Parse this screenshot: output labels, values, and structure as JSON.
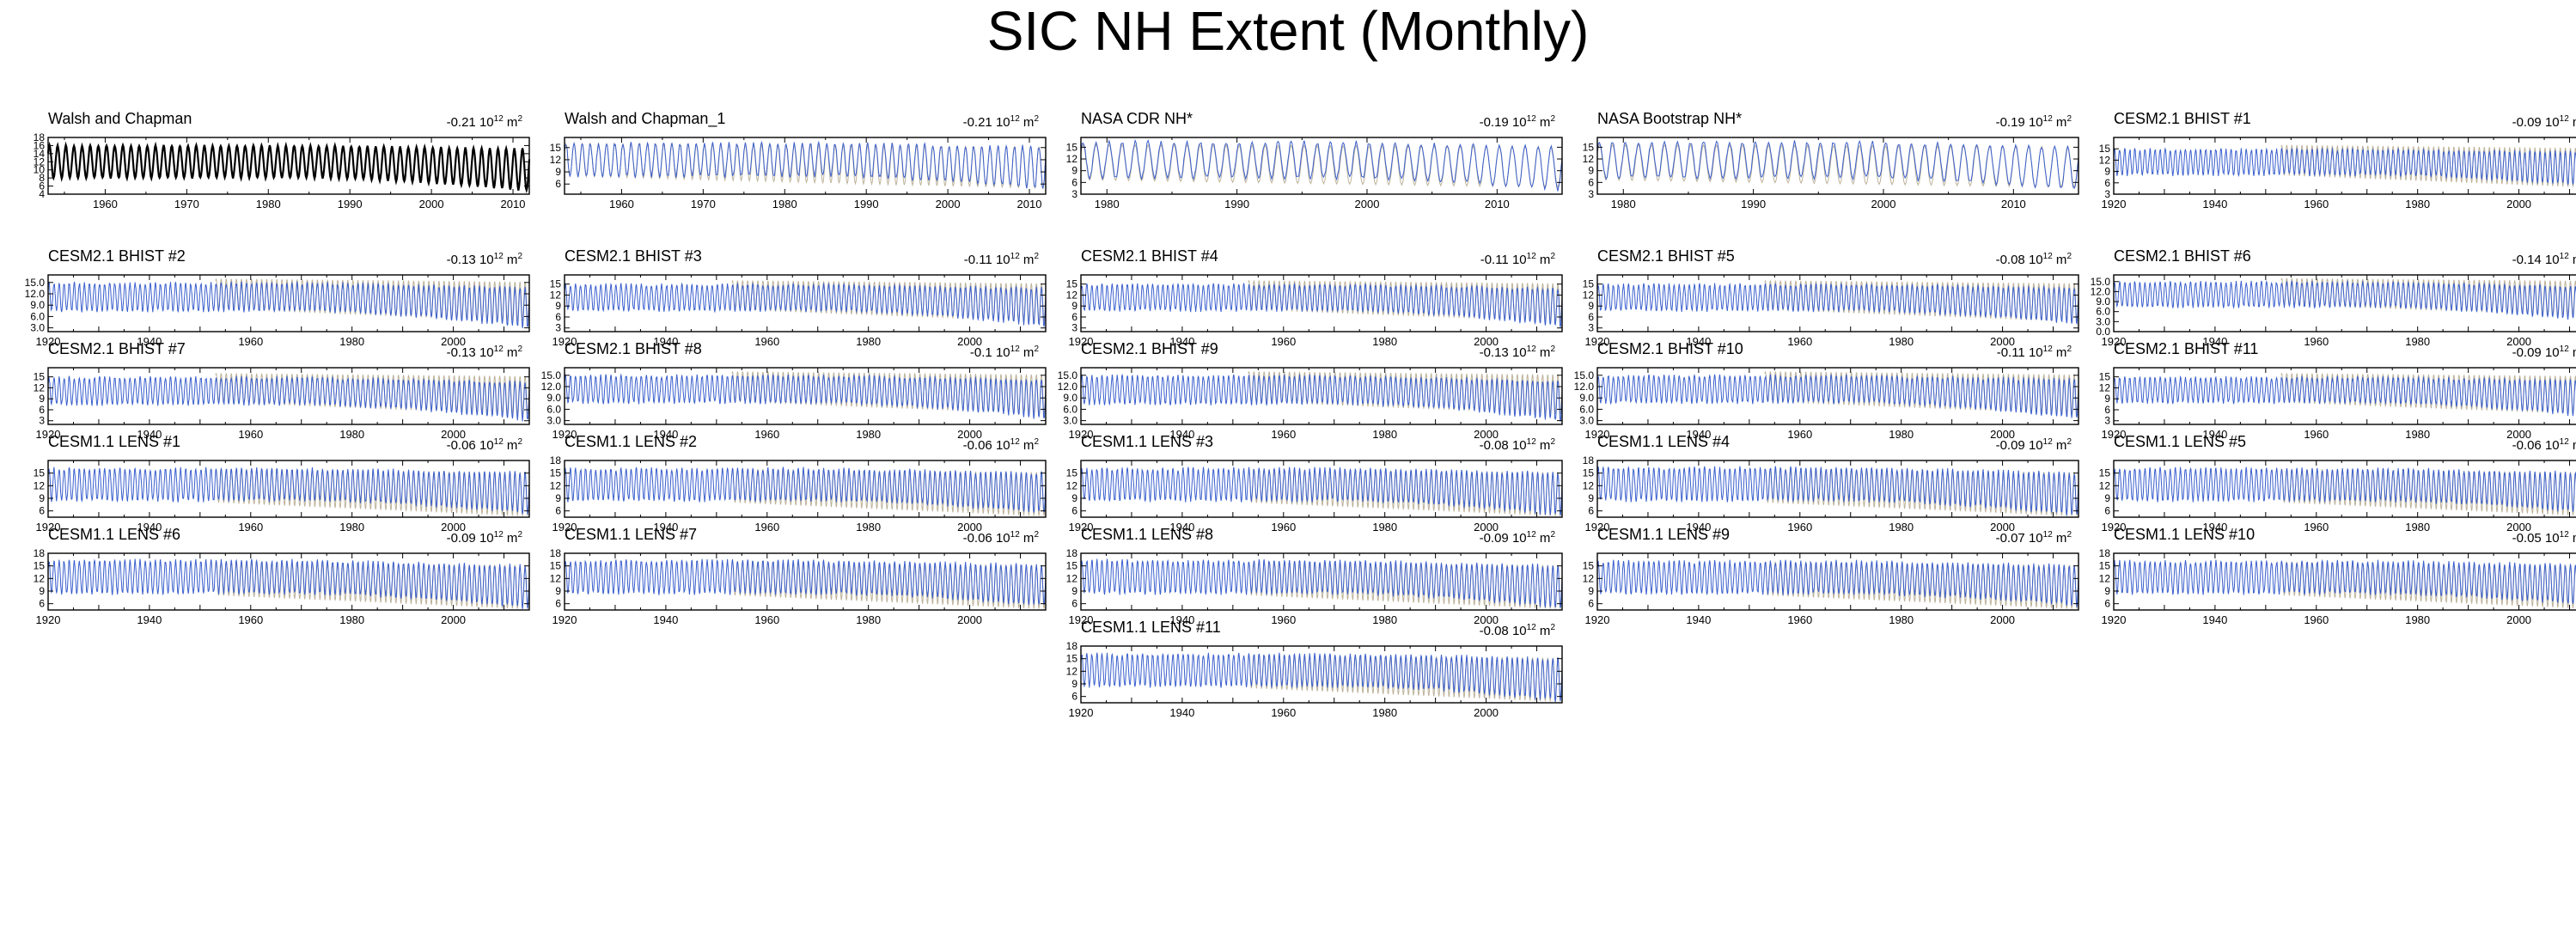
{
  "title": "SIC NH Extent (Monthly)",
  "trend_unit": "10",
  "trend_unit_exp": "12",
  "trend_unit_tail": " m",
  "trend_unit_exp2": "2",
  "colors": {
    "obs": "#000000",
    "model": "#3a5fcd",
    "reference": "#bdb39b"
  },
  "chart_data": [
    {
      "type": "line",
      "title": "Walsh and Chapman",
      "trend": "-0.21",
      "x_range": [
        1953,
        2012
      ],
      "yticks": [
        "18",
        "16",
        "14",
        "12",
        "10",
        "8",
        "6",
        "4"
      ],
      "ylim": [
        4,
        18
      ],
      "xticks": [
        1960,
        1970,
        1980,
        1990,
        2000,
        2010
      ],
      "series": [
        {
          "name": "Walsh and Chapman",
          "color": "obs",
          "max": 16.0,
          "min": 8.0,
          "max_end": 15.2,
          "min_end": 4.8
        }
      ]
    },
    {
      "type": "line",
      "title": "Walsh and Chapman_1",
      "trend": "-0.21",
      "x_range": [
        1953,
        2012
      ],
      "yticks": [
        "15",
        "12",
        "9",
        "6"
      ],
      "ylim": [
        3.5,
        17.5
      ],
      "xticks": [
        1960,
        1970,
        1980,
        1990,
        2000,
        2010
      ],
      "series": [
        {
          "name": "Walsh and Chapman_1",
          "color": "model",
          "max": 16.0,
          "min": 8.0,
          "max_end": 15.2,
          "min_end": 4.8
        }
      ]
    },
    {
      "type": "line",
      "title": "NASA CDR NH*",
      "trend": "-0.19",
      "x_range": [
        1978,
        2015
      ],
      "yticks": [
        "15",
        "12",
        "9",
        "6",
        "3"
      ],
      "ylim": [
        3,
        17.5
      ],
      "xticks": [
        1980,
        1990,
        2000,
        2010
      ],
      "series": [
        {
          "name": "NASA CDR NH*",
          "color": "model",
          "max": 16.3,
          "min": 7.2,
          "max_end": 15.0,
          "min_end": 4.0
        }
      ]
    },
    {
      "type": "line",
      "title": "NASA Bootstrap NH*",
      "trend": "-0.19",
      "x_range": [
        1978,
        2015
      ],
      "yticks": [
        "15",
        "12",
        "9",
        "6",
        "3"
      ],
      "ylim": [
        3,
        17.5
      ],
      "xticks": [
        1980,
        1990,
        2000,
        2010
      ],
      "series": [
        {
          "name": "NASA Bootstrap NH*",
          "color": "model",
          "max": 16.3,
          "min": 7.2,
          "max_end": 15.0,
          "min_end": 4.0
        }
      ]
    },
    {
      "type": "line",
      "title": "CESM2.1 BHIST #1",
      "trend": "-0.09",
      "x_range": [
        1920,
        2015
      ],
      "yticks": [
        "15",
        "12",
        "9",
        "6",
        "3"
      ],
      "ylim": [
        3,
        18
      ],
      "xticks": [
        1920,
        1940,
        1960,
        1980,
        2000
      ],
      "series": [
        {
          "name": "CESM2.1 BHIST #1",
          "color": "model",
          "max": 14.8,
          "min": 8.2,
          "max_end": 14.0,
          "min_end": 5.0
        }
      ]
    },
    {
      "type": "line",
      "title": "CESM2.1 BHIST #2",
      "trend": "-0.13",
      "x_range": [
        1920,
        2015
      ],
      "yticks": [
        "15.0",
        "12.0",
        "9.0",
        "6.0",
        "3.0"
      ],
      "ylim": [
        2,
        17
      ],
      "xticks": [
        1920,
        1940,
        1960,
        1980,
        2000
      ],
      "series": [
        {
          "name": "CESM2.1 BHIST #2",
          "color": "model",
          "max": 14.8,
          "min": 7.5,
          "max_end": 13.5,
          "min_end": 3.0
        }
      ]
    },
    {
      "type": "line",
      "title": "CESM2.1 BHIST #3",
      "trend": "-0.11",
      "x_range": [
        1920,
        2015
      ],
      "yticks": [
        "15",
        "12",
        "9",
        "6",
        "3"
      ],
      "ylim": [
        2,
        17.5
      ],
      "xticks": [
        1920,
        1940,
        1960,
        1980,
        2000
      ],
      "series": [
        {
          "name": "CESM2.1 BHIST #3",
          "color": "model",
          "max": 14.8,
          "min": 7.8,
          "max_end": 13.8,
          "min_end": 3.5
        }
      ]
    },
    {
      "type": "line",
      "title": "CESM2.1 BHIST #4",
      "trend": "-0.11",
      "x_range": [
        1920,
        2015
      ],
      "yticks": [
        "15",
        "12",
        "9",
        "6",
        "3"
      ],
      "ylim": [
        2,
        17.5
      ],
      "xticks": [
        1920,
        1940,
        1960,
        1980,
        2000
      ],
      "series": [
        {
          "name": "CESM2.1 BHIST #4",
          "color": "model",
          "max": 14.8,
          "min": 7.8,
          "max_end": 13.8,
          "min_end": 3.5
        }
      ]
    },
    {
      "type": "line",
      "title": "CESM2.1 BHIST #5",
      "trend": "-0.08",
      "x_range": [
        1920,
        2015
      ],
      "yticks": [
        "15",
        "12",
        "9",
        "6",
        "3"
      ],
      "ylim": [
        2,
        17.5
      ],
      "xticks": [
        1920,
        1940,
        1960,
        1980,
        2000
      ],
      "series": [
        {
          "name": "CESM2.1 BHIST #5",
          "color": "model",
          "max": 14.8,
          "min": 7.8,
          "max_end": 14.0,
          "min_end": 4.0
        }
      ]
    },
    {
      "type": "line",
      "title": "CESM2.1 BHIST #6",
      "trend": "-0.14",
      "x_range": [
        1920,
        2015
      ],
      "yticks": [
        "15.0",
        "12.0",
        "9.0",
        "6.0",
        "3.0",
        "0.0"
      ],
      "ylim": [
        0,
        17
      ],
      "xticks": [
        1920,
        1940,
        1960,
        1980,
        2000
      ],
      "series": [
        {
          "name": "CESM2.1 BHIST #6",
          "color": "model",
          "max": 14.8,
          "min": 7.5,
          "max_end": 13.5,
          "min_end": 3.0
        }
      ]
    },
    {
      "type": "line",
      "title": "CESM2.1 BHIST #7",
      "trend": "-0.13",
      "x_range": [
        1920,
        2015
      ],
      "yticks": [
        "15",
        "12",
        "9",
        "6",
        "3"
      ],
      "ylim": [
        2,
        17.5
      ],
      "xticks": [
        1920,
        1940,
        1960,
        1980,
        2000
      ],
      "series": [
        {
          "name": "CESM2.1 BHIST #7",
          "color": "model",
          "max": 14.8,
          "min": 7.5,
          "max_end": 13.5,
          "min_end": 3.0
        }
      ]
    },
    {
      "type": "line",
      "title": "CESM2.1 BHIST #8",
      "trend": "-0.1",
      "x_range": [
        1920,
        2015
      ],
      "yticks": [
        "15.0",
        "12.0",
        "9.0",
        "6.0",
        "3.0"
      ],
      "ylim": [
        2,
        17
      ],
      "xticks": [
        1920,
        1940,
        1960,
        1980,
        2000
      ],
      "series": [
        {
          "name": "CESM2.1 BHIST #8",
          "color": "model",
          "max": 14.8,
          "min": 7.8,
          "max_end": 13.8,
          "min_end": 3.5
        }
      ]
    },
    {
      "type": "line",
      "title": "CESM2.1 BHIST #9",
      "trend": "-0.13",
      "x_range": [
        1920,
        2015
      ],
      "yticks": [
        "15.0",
        "12.0",
        "9.0",
        "6.0",
        "3.0"
      ],
      "ylim": [
        2,
        17
      ],
      "xticks": [
        1920,
        1940,
        1960,
        1980,
        2000
      ],
      "series": [
        {
          "name": "CESM2.1 BHIST #9",
          "color": "model",
          "max": 14.8,
          "min": 7.5,
          "max_end": 13.5,
          "min_end": 3.0
        }
      ]
    },
    {
      "type": "line",
      "title": "CESM2.1 BHIST #10",
      "trend": "-0.11",
      "x_range": [
        1920,
        2015
      ],
      "yticks": [
        "15.0",
        "12.0",
        "9.0",
        "6.0",
        "3.0"
      ],
      "ylim": [
        2,
        17
      ],
      "xticks": [
        1920,
        1940,
        1960,
        1980,
        2000
      ],
      "series": [
        {
          "name": "CESM2.1 BHIST #10",
          "color": "model",
          "max": 14.8,
          "min": 7.8,
          "max_end": 13.8,
          "min_end": 3.5
        }
      ]
    },
    {
      "type": "line",
      "title": "CESM2.1 BHIST #11",
      "trend": "-0.09",
      "x_range": [
        1920,
        2015
      ],
      "yticks": [
        "15",
        "12",
        "9",
        "6",
        "3"
      ],
      "ylim": [
        2,
        17.5
      ],
      "xticks": [
        1920,
        1940,
        1960,
        1980,
        2000
      ],
      "series": [
        {
          "name": "CESM2.1 BHIST #11",
          "color": "model",
          "max": 14.8,
          "min": 8.0,
          "max_end": 14.0,
          "min_end": 4.0
        }
      ]
    },
    {
      "type": "line",
      "title": "CESM1.1 LENS #1",
      "trend": "-0.06",
      "x_range": [
        1920,
        2015
      ],
      "yticks": [
        "15",
        "12",
        "9",
        "6"
      ],
      "ylim": [
        4.5,
        18
      ],
      "xticks": [
        1920,
        1940,
        1960,
        1980,
        2000
      ],
      "series": [
        {
          "name": "CESM1.1 LENS #1",
          "color": "model",
          "max": 16.0,
          "min": 8.5,
          "max_end": 15.0,
          "min_end": 5.5
        }
      ]
    },
    {
      "type": "line",
      "title": "CESM1.1 LENS #2",
      "trend": "-0.06",
      "x_range": [
        1920,
        2015
      ],
      "yticks": [
        "18",
        "15",
        "12",
        "9",
        "6"
      ],
      "ylim": [
        4.5,
        18
      ],
      "xticks": [
        1920,
        1940,
        1960,
        1980,
        2000
      ],
      "series": [
        {
          "name": "CESM1.1 LENS #2",
          "color": "model",
          "max": 16.0,
          "min": 8.5,
          "max_end": 15.0,
          "min_end": 5.5
        }
      ]
    },
    {
      "type": "line",
      "title": "CESM1.1 LENS #3",
      "trend": "-0.08",
      "x_range": [
        1920,
        2015
      ],
      "yticks": [
        "15",
        "12",
        "9",
        "6"
      ],
      "ylim": [
        4.5,
        18
      ],
      "xticks": [
        1920,
        1940,
        1960,
        1980,
        2000
      ],
      "series": [
        {
          "name": "CESM1.1 LENS #3",
          "color": "model",
          "max": 16.0,
          "min": 8.5,
          "max_end": 15.0,
          "min_end": 5.0
        }
      ]
    },
    {
      "type": "line",
      "title": "CESM1.1 LENS #4",
      "trend": "-0.09",
      "x_range": [
        1920,
        2015
      ],
      "yticks": [
        "18",
        "15",
        "12",
        "9",
        "6"
      ],
      "ylim": [
        4.5,
        18
      ],
      "xticks": [
        1920,
        1940,
        1960,
        1980,
        2000
      ],
      "series": [
        {
          "name": "CESM1.1 LENS #4",
          "color": "model",
          "max": 16.2,
          "min": 8.5,
          "max_end": 15.0,
          "min_end": 5.0
        }
      ]
    },
    {
      "type": "line",
      "title": "CESM1.1 LENS #5",
      "trend": "-0.06",
      "x_range": [
        1920,
        2015
      ],
      "yticks": [
        "15",
        "12",
        "9",
        "6"
      ],
      "ylim": [
        4.5,
        18
      ],
      "xticks": [
        1920,
        1940,
        1960,
        1980,
        2000
      ],
      "series": [
        {
          "name": "CESM1.1 LENS #5",
          "color": "model",
          "max": 16.0,
          "min": 8.5,
          "max_end": 15.0,
          "min_end": 5.5
        }
      ]
    },
    {
      "type": "line",
      "title": "CESM1.1 LENS #6",
      "trend": "-0.09",
      "x_range": [
        1920,
        2015
      ],
      "yticks": [
        "18",
        "15",
        "12",
        "9",
        "6"
      ],
      "ylim": [
        4.5,
        18
      ],
      "xticks": [
        1920,
        1940,
        1960,
        1980,
        2000
      ],
      "series": [
        {
          "name": "CESM1.1 LENS #6",
          "color": "model",
          "max": 16.2,
          "min": 8.5,
          "max_end": 15.0,
          "min_end": 5.0
        }
      ]
    },
    {
      "type": "line",
      "title": "CESM1.1 LENS #7",
      "trend": "-0.06",
      "x_range": [
        1920,
        2015
      ],
      "yticks": [
        "18",
        "15",
        "12",
        "9",
        "6"
      ],
      "ylim": [
        4.5,
        18
      ],
      "xticks": [
        1920,
        1940,
        1960,
        1980,
        2000
      ],
      "series": [
        {
          "name": "CESM1.1 LENS #7",
          "color": "model",
          "max": 16.2,
          "min": 8.5,
          "max_end": 15.2,
          "min_end": 5.5
        }
      ]
    },
    {
      "type": "line",
      "title": "CESM1.1 LENS #8",
      "trend": "-0.09",
      "x_range": [
        1920,
        2015
      ],
      "yticks": [
        "18",
        "15",
        "12",
        "9",
        "6"
      ],
      "ylim": [
        4.5,
        18
      ],
      "xticks": [
        1920,
        1940,
        1960,
        1980,
        2000
      ],
      "series": [
        {
          "name": "CESM1.1 LENS #8",
          "color": "model",
          "max": 16.2,
          "min": 8.5,
          "max_end": 15.0,
          "min_end": 5.0
        }
      ]
    },
    {
      "type": "line",
      "title": "CESM1.1 LENS #9",
      "trend": "-0.07",
      "x_range": [
        1920,
        2015
      ],
      "yticks": [
        "15",
        "12",
        "9",
        "6"
      ],
      "ylim": [
        4.5,
        18
      ],
      "xticks": [
        1920,
        1940,
        1960,
        1980,
        2000
      ],
      "series": [
        {
          "name": "CESM1.1 LENS #9",
          "color": "model",
          "max": 16.0,
          "min": 8.5,
          "max_end": 15.0,
          "min_end": 5.5
        }
      ]
    },
    {
      "type": "line",
      "title": "CESM1.1 LENS #10",
      "trend": "-0.05",
      "x_range": [
        1920,
        2015
      ],
      "yticks": [
        "18",
        "15",
        "12",
        "9",
        "6"
      ],
      "ylim": [
        4.5,
        18
      ],
      "xticks": [
        1920,
        1940,
        1960,
        1980,
        2000
      ],
      "series": [
        {
          "name": "CESM1.1 LENS #10",
          "color": "model",
          "max": 16.0,
          "min": 8.5,
          "max_end": 15.2,
          "min_end": 5.5
        }
      ]
    },
    {
      "type": "line",
      "title": "CESM1.1 LENS #11",
      "trend": "-0.08",
      "x_range": [
        1920,
        2015
      ],
      "yticks": [
        "18",
        "15",
        "12",
        "9",
        "6"
      ],
      "ylim": [
        4.5,
        18
      ],
      "xticks": [
        1920,
        1940,
        1960,
        1980,
        2000
      ],
      "series": [
        {
          "name": "CESM1.1 LENS #11",
          "color": "model",
          "max": 16.0,
          "min": 8.5,
          "max_end": 15.0,
          "min_end": 5.0
        }
      ]
    }
  ]
}
